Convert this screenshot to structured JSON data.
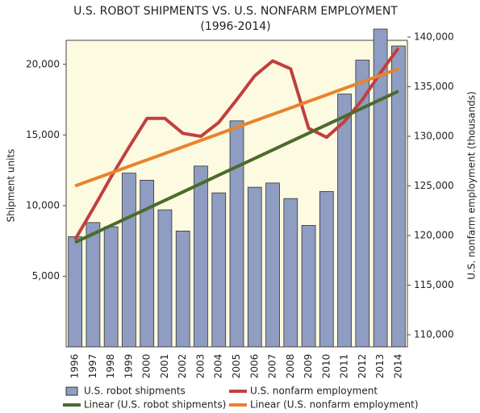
{
  "chart_data": {
    "type": "bar-line",
    "title": "U.S. ROBOT SHIPMENTS VS. U.S. NONFARM EMPLOYMENT",
    "subtitle": "(1996-2014)",
    "y_label": "Shipment units",
    "y2_label": "U.S. nonfarm employment (thousands)",
    "categories": [
      "1996",
      "1997",
      "1998",
      "1999",
      "2000",
      "2001",
      "2002",
      "2003",
      "2004",
      "2005",
      "2006",
      "2007",
      "2008",
      "2009",
      "2010",
      "2011",
      "2012",
      "2013",
      "2014"
    ],
    "series": [
      {
        "name": "U.S. robot shipments",
        "kind": "bar",
        "color": "#8f9dc2",
        "values": [
          7800,
          8800,
          8500,
          12300,
          11800,
          9700,
          8200,
          12800,
          10900,
          16000,
          11300,
          11600,
          10500,
          8600,
          11000,
          17900,
          20300,
          22500,
          21300
        ]
      },
      {
        "name": "U.S. nonfarm employment",
        "kind": "line",
        "axis": "y2",
        "color": "#c0403e",
        "values": [
          119600,
          122700,
          125900,
          128900,
          131800,
          131800,
          130300,
          130000,
          131400,
          133700,
          136100,
          137600,
          136800,
          130800,
          129900,
          131500,
          133700,
          136400,
          138900
        ]
      },
      {
        "name": "Linear (U.S. robot shipments)",
        "kind": "line",
        "color": "#4b6b2b",
        "values": [
          7400,
          7994,
          8589,
          9183,
          9778,
          10372,
          10967,
          11561,
          12156,
          12750,
          13344,
          13939,
          14533,
          15128,
          15722,
          16317,
          16911,
          17506,
          18100
        ]
      },
      {
        "name": "Linear (U.S. nonfarm employment)",
        "kind": "line",
        "axis": "y2",
        "color": "#e8832c",
        "values": [
          125000,
          125656,
          126311,
          126967,
          127622,
          128278,
          128933,
          129589,
          130244,
          130900,
          131556,
          132211,
          132867,
          133522,
          134178,
          134833,
          135489,
          136144,
          136800
        ]
      }
    ],
    "ylim": [
      0,
      22500
    ],
    "yticks": [
      {
        "value": 5000,
        "label": "5,000"
      },
      {
        "value": 10000,
        "label": "10,000"
      },
      {
        "value": 15000,
        "label": "15,000"
      },
      {
        "value": 20000,
        "label": "20,000"
      }
    ],
    "y2lim": [
      108780,
      140810
    ],
    "y2ticks": [
      {
        "value": 110000,
        "label": "110,000"
      },
      {
        "value": 115000,
        "label": "115,000"
      },
      {
        "value": 120000,
        "label": "120,000"
      },
      {
        "value": 125000,
        "label": "125,000"
      },
      {
        "value": 130000,
        "label": "130,000"
      },
      {
        "value": 135000,
        "label": "135,000"
      },
      {
        "value": 140000,
        "label": "140,000"
      }
    ],
    "background": "#fcfae0"
  }
}
